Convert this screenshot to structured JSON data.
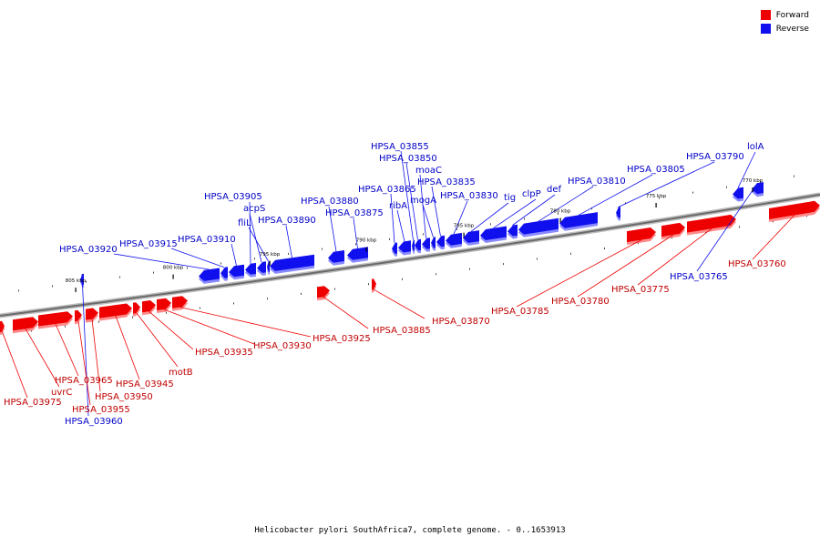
{
  "title": "Helicobacter pylori SouthAfrica7, complete genome. - 0..1653913",
  "legend": [
    {
      "label": "Forward",
      "color": "#ee0000"
    },
    {
      "label": "Reverse",
      "color": "#1010ee"
    }
  ],
  "ticks": [
    {
      "label": "805 kbp"
    },
    {
      "label": "800 kbp"
    },
    {
      "label": "795 kbp"
    },
    {
      "label": "790 kbp"
    },
    {
      "label": "785 kbp"
    },
    {
      "label": "780 kbp"
    },
    {
      "label": "775 kbp"
    },
    {
      "label": "770 kbp"
    }
  ],
  "genes": [
    {
      "name": "HPSA_03975",
      "strand": "forward"
    },
    {
      "name": "uvrC",
      "strand": "forward"
    },
    {
      "name": "HPSA_03965",
      "strand": "forward"
    },
    {
      "name": "HPSA_03960",
      "strand": "reverse"
    },
    {
      "name": "HPSA_03955",
      "strand": "forward"
    },
    {
      "name": "HPSA_03950",
      "strand": "forward"
    },
    {
      "name": "HPSA_03945",
      "strand": "forward"
    },
    {
      "name": "motB",
      "strand": "forward"
    },
    {
      "name": "HPSA_03935",
      "strand": "forward"
    },
    {
      "name": "HPSA_03930",
      "strand": "forward"
    },
    {
      "name": "HPSA_03925",
      "strand": "forward"
    },
    {
      "name": "HPSA_03920",
      "strand": "reverse"
    },
    {
      "name": "HPSA_03915",
      "strand": "reverse"
    },
    {
      "name": "HPSA_03910",
      "strand": "reverse"
    },
    {
      "name": "HPSA_03905",
      "strand": "reverse"
    },
    {
      "name": "acpS",
      "strand": "reverse"
    },
    {
      "name": "fliL",
      "strand": "reverse"
    },
    {
      "name": "HPSA_03890",
      "strand": "reverse"
    },
    {
      "name": "HPSA_03885",
      "strand": "forward"
    },
    {
      "name": "HPSA_03880",
      "strand": "reverse"
    },
    {
      "name": "HPSA_03875",
      "strand": "reverse"
    },
    {
      "name": "HPSA_03870",
      "strand": "forward"
    },
    {
      "name": "HPSA_03865",
      "strand": "reverse"
    },
    {
      "name": "ribA",
      "strand": "reverse"
    },
    {
      "name": "HPSA_03855",
      "strand": "reverse"
    },
    {
      "name": "HPSA_03850",
      "strand": "reverse"
    },
    {
      "name": "moaC",
      "strand": "reverse"
    },
    {
      "name": "mogA",
      "strand": "reverse"
    },
    {
      "name": "HPSA_03835",
      "strand": "reverse"
    },
    {
      "name": "HPSA_03830",
      "strand": "reverse"
    },
    {
      "name": "tig",
      "strand": "reverse"
    },
    {
      "name": "clpP",
      "strand": "reverse"
    },
    {
      "name": "def",
      "strand": "reverse"
    },
    {
      "name": "HPSA_03810",
      "strand": "reverse"
    },
    {
      "name": "HPSA_03805",
      "strand": "reverse"
    },
    {
      "name": "HPSA_03790",
      "strand": "reverse"
    },
    {
      "name": "HPSA_03785",
      "strand": "forward"
    },
    {
      "name": "HPSA_03780",
      "strand": "forward"
    },
    {
      "name": "HPSA_03775",
      "strand": "forward"
    },
    {
      "name": "lolA",
      "strand": "reverse"
    },
    {
      "name": "HPSA_03765",
      "strand": "reverse"
    },
    {
      "name": "HPSA_03760",
      "strand": "forward"
    }
  ]
}
